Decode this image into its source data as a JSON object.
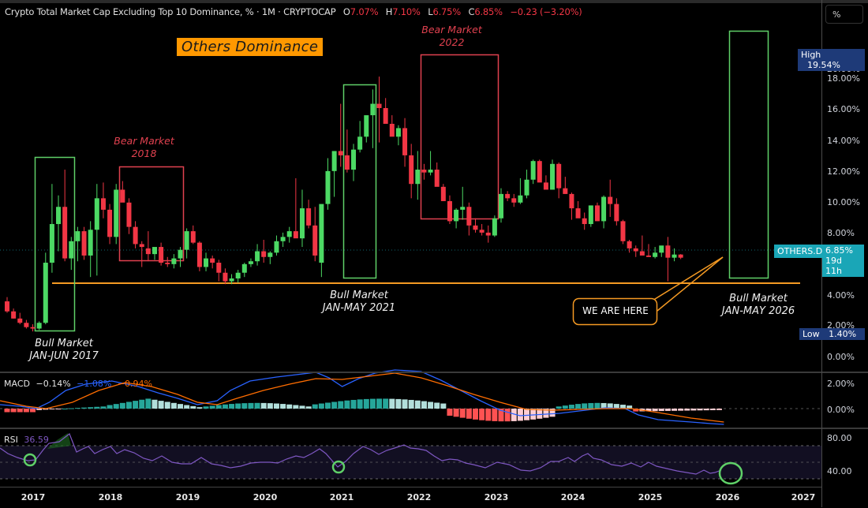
{
  "header": {
    "symbol_title": "Crypto Total Market Cap Excluding Top 10 Dominance, % · 1M · CRYPTOCAP",
    "ohlc": {
      "open_label": "O",
      "open": "7.07%",
      "high_label": "H",
      "high": "7.10%",
      "low_label": "L",
      "low": "6.75%",
      "close_label": "C",
      "close": "6.85%",
      "change": "−0.23 (−3.20%)"
    }
  },
  "price_scale": {
    "mode_button": "%",
    "ticks": [
      "20.00%",
      "18.00%",
      "16.00%",
      "14.00%",
      "12.00%",
      "10.00%",
      "8.00%",
      "4.00%",
      "2.00%",
      "0.00%"
    ],
    "high_tag": {
      "label": "High",
      "value": "19.54%"
    },
    "low_tag": {
      "label": "Low",
      "value": "1.40%"
    },
    "current_tag": {
      "symbol": "OTHERS.D",
      "value": "6.85%",
      "countdown": "19d 11h"
    }
  },
  "annotations": {
    "title": "Others Dominance",
    "bear_2018": {
      "line1": "Bear Market",
      "line2": "2018"
    },
    "bear_2022": {
      "line1": "Bear Market",
      "line2": "2022"
    },
    "bull_2017": {
      "line1": "Bull Market",
      "line2": "JAN-JUN 2017"
    },
    "bull_2021": {
      "line1": "Bull Market",
      "line2": "JAN-MAY 2021"
    },
    "bull_2026": {
      "line1": "Bull Market",
      "line2": "JAN-MAY 2026"
    },
    "callout": "WE ARE HERE"
  },
  "macd": {
    "label": "MACD",
    "hist": "−0.14%",
    "macd": "−1.08%",
    "signal": "−0.94%",
    "ticks": [
      "2.00%",
      "0.00%"
    ]
  },
  "rsi": {
    "label": "RSI",
    "value": "36.59",
    "ticks": [
      "80.00",
      "40.00"
    ]
  },
  "time_axis": {
    "labels": [
      "2017",
      "2018",
      "2019",
      "2020",
      "2021",
      "2022",
      "2023",
      "2024",
      "2025",
      "2026",
      "2027"
    ]
  },
  "colors": {
    "up": "#4cd964",
    "down": "#f23645",
    "bull_box": "#5fd068",
    "bear_box": "#e0414f",
    "support_line": "#f59a23",
    "macd_line": "#2962ff",
    "signal_line": "#ff6d00",
    "rsi_line": "#7e57c2",
    "current_tag": "#1aa6b7",
    "high_low_tag": "#1e3a78"
  },
  "chart_data": {
    "type": "candlestick",
    "title": "Crypto Total Market Cap Excluding Top 10 Dominance, % · 1M · CRYPTOCAP",
    "ylabel": "%",
    "ylim": [
      0,
      20
    ],
    "x_ticks": [
      "2017",
      "2018",
      "2019",
      "2020",
      "2021",
      "2022",
      "2023",
      "2024",
      "2025",
      "2026",
      "2027"
    ],
    "key_levels": {
      "all_time_high": 19.54,
      "all_time_low": 1.4,
      "current": 6.85,
      "support": 5.0
    },
    "approx_monthly_close": [
      {
        "period": "2016-10",
        "close": 3.2
      },
      {
        "period": "2016-12",
        "close": 2.5
      },
      {
        "period": "2017-01",
        "close": 1.9
      },
      {
        "period": "2017-03",
        "close": 5.6
      },
      {
        "period": "2017-05",
        "close": 8.0
      },
      {
        "period": "2017-06",
        "close": 10.4
      },
      {
        "period": "2017-07",
        "close": 6.8
      },
      {
        "period": "2017-12",
        "close": 10.9
      },
      {
        "period": "2018-02",
        "close": 12.0
      },
      {
        "period": "2018-06",
        "close": 7.5
      },
      {
        "period": "2018-10",
        "close": 6.7
      },
      {
        "period": "2019-01",
        "close": 8.6
      },
      {
        "period": "2019-08",
        "close": 5.8
      },
      {
        "period": "2020-01",
        "close": 6.3
      },
      {
        "period": "2020-07",
        "close": 8.3
      },
      {
        "period": "2020-10",
        "close": 7.5
      },
      {
        "period": "2020-12",
        "close": 6.6
      },
      {
        "period": "2021-02",
        "close": 11.1
      },
      {
        "period": "2021-05",
        "close": 14.4
      },
      {
        "period": "2021-09",
        "close": 15.8
      },
      {
        "period": "2021-11",
        "close": 17.3
      },
      {
        "period": "2022-01",
        "close": 16.0
      },
      {
        "period": "2022-05",
        "close": 12.0
      },
      {
        "period": "2022-12",
        "close": 9.4
      },
      {
        "period": "2023-06",
        "close": 9.5
      },
      {
        "period": "2023-12",
        "close": 12.3
      },
      {
        "period": "2024-03",
        "close": 13.6
      },
      {
        "period": "2024-07",
        "close": 10.5
      },
      {
        "period": "2024-12",
        "close": 10.6
      },
      {
        "period": "2025-04",
        "close": 7.8
      },
      {
        "period": "2025-10",
        "close": 7.0
      },
      {
        "period": "2025-12",
        "close": 6.85
      }
    ],
    "regions": [
      {
        "label": "Bull Market JAN-JUN 2017",
        "type": "bull",
        "y_range": [
          1.5,
          13.0
        ]
      },
      {
        "label": "Bear Market 2018",
        "type": "bear",
        "y_range": [
          6.5,
          12.3
        ]
      },
      {
        "label": "Bull Market JAN-MAY 2021",
        "type": "bull",
        "y_range": [
          5.5,
          17.7
        ]
      },
      {
        "label": "Bear Market 2022",
        "type": "bear",
        "y_range": [
          8.9,
          19.0
        ]
      },
      {
        "label": "Bull Market JAN-MAY 2026",
        "type": "bull",
        "y_range": [
          5.4,
          21.3
        ]
      }
    ],
    "indicators": {
      "MACD": {
        "histogram": -0.14,
        "macd": -1.08,
        "signal": -0.94
      },
      "RSI": {
        "value": 36.59,
        "levels": [
          70,
          50,
          30
        ]
      }
    }
  }
}
